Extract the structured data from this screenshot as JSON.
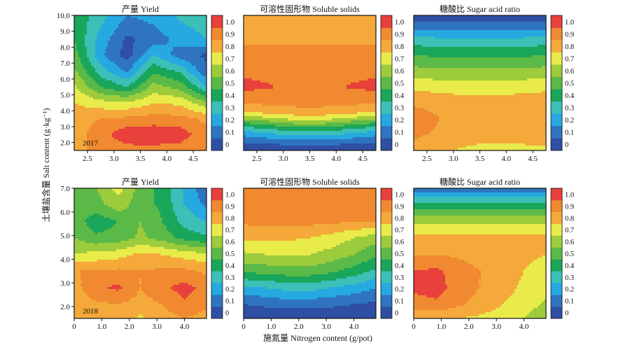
{
  "figure": {
    "ylabel": "土壤盐含量 Salt content (g·kg⁻¹)",
    "xlabel": "施氮量 Nitrogen content (g/pot)"
  },
  "colorbar": {
    "levels": [
      0,
      0.1,
      0.2,
      0.3,
      0.4,
      0.5,
      0.6,
      0.7,
      0.8,
      0.9,
      1.0
    ],
    "tick_labels": [
      "0",
      "0.1",
      "0.2",
      "0.3",
      "0.4",
      "0.5",
      "0.6",
      "0.7",
      "0.8",
      "0.9",
      "1.0"
    ],
    "colors": [
      "#2e4fa3",
      "#2f74c0",
      "#25a9e0",
      "#3bbfb7",
      "#1aa65a",
      "#5bb947",
      "#9ccb3c",
      "#e8eb4a",
      "#f5a93a",
      "#f0892f",
      "#e8403a"
    ]
  },
  "chart_data": [
    {
      "type": "heatmap",
      "row": 0,
      "col": 0,
      "title": "产量 Yield",
      "year_label": "2017",
      "xlim": [
        2.25,
        4.75
      ],
      "ylim": [
        1.5,
        10.0
      ],
      "xticks": [
        2.5,
        3.0,
        3.5,
        4.0,
        4.5
      ],
      "xtick_labels": [
        "2.5",
        "3.0",
        "3.5",
        "4.0",
        "4.5"
      ],
      "yticks": [
        2,
        3,
        4,
        5,
        6,
        7,
        8,
        9,
        10
      ],
      "ytick_labels": [
        "2.0",
        "3.0",
        "4.0",
        "5.0",
        "6.0",
        "7.0",
        "8.0",
        "9.0",
        "10.0"
      ],
      "grid_x": [
        2.25,
        2.75,
        3.25,
        3.75,
        4.25,
        4.75
      ],
      "grid_y": [
        1.5,
        2.5,
        3.5,
        4.5,
        5.5,
        6.5,
        7.5,
        8.5,
        10.0
      ],
      "z": [
        [
          0.88,
          0.92,
          0.95,
          0.96,
          0.94,
          0.9
        ],
        [
          0.86,
          0.95,
          1.08,
          1.08,
          1.06,
          0.92
        ],
        [
          0.86,
          0.9,
          0.92,
          0.94,
          0.93,
          0.88
        ],
        [
          0.8,
          0.74,
          0.72,
          0.79,
          0.78,
          0.62
        ],
        [
          0.72,
          0.5,
          0.4,
          0.64,
          0.56,
          0.3
        ],
        [
          0.62,
          0.35,
          0.18,
          0.48,
          0.38,
          0.12
        ],
        [
          0.55,
          0.22,
          0.05,
          0.3,
          0.15,
          0.08
        ],
        [
          0.5,
          0.26,
          0.08,
          0.14,
          0.24,
          0.3
        ],
        [
          0.48,
          0.34,
          0.2,
          0.24,
          0.32,
          0.36
        ]
      ]
    },
    {
      "type": "heatmap",
      "row": 0,
      "col": 1,
      "title": "可溶性固形物 Soluble solids",
      "xlim": [
        2.25,
        4.75
      ],
      "ylim": [
        1.5,
        10.0
      ],
      "xticks": [
        2.5,
        3.0,
        3.5,
        4.0,
        4.5
      ],
      "xtick_labels": [
        "2.5",
        "3.0",
        "3.5",
        "4.0",
        "4.5"
      ],
      "grid_x": [
        2.25,
        2.75,
        3.25,
        3.75,
        4.25,
        4.75
      ],
      "grid_y": [
        1.5,
        2.0,
        2.5,
        3.0,
        3.5,
        4.0,
        4.5,
        5.5,
        6.5,
        7.5,
        8.5,
        10.0
      ],
      "z": [
        [
          0.02,
          0.02,
          0.02,
          0.02,
          0.02,
          0.02
        ],
        [
          0.1,
          0.12,
          0.14,
          0.14,
          0.12,
          0.1
        ],
        [
          0.22,
          0.28,
          0.32,
          0.32,
          0.28,
          0.22
        ],
        [
          0.4,
          0.46,
          0.52,
          0.52,
          0.46,
          0.4
        ],
        [
          0.62,
          0.68,
          0.74,
          0.74,
          0.68,
          0.62
        ],
        [
          0.84,
          0.86,
          0.88,
          0.88,
          0.86,
          0.84
        ],
        [
          0.9,
          0.92,
          0.92,
          0.92,
          0.92,
          0.9
        ],
        [
          1.03,
          1.01,
          0.94,
          0.94,
          1.01,
          1.03
        ],
        [
          0.98,
          0.96,
          0.92,
          0.92,
          0.96,
          0.98
        ],
        [
          0.92,
          0.92,
          0.92,
          0.92,
          0.92,
          0.92
        ],
        [
          0.89,
          0.89,
          0.89,
          0.89,
          0.89,
          0.89
        ],
        [
          0.84,
          0.83,
          0.83,
          0.84,
          0.85,
          0.85
        ]
      ]
    },
    {
      "type": "heatmap",
      "row": 0,
      "col": 2,
      "title": "糖酸比 Sugar acid ratio",
      "xlim": [
        2.25,
        4.75
      ],
      "ylim": [
        1.5,
        10.0
      ],
      "xticks": [
        2.5,
        3.0,
        3.5,
        4.0,
        4.5
      ],
      "xtick_labels": [
        "2.5",
        "3.0",
        "3.5",
        "4.0",
        "4.5"
      ],
      "grid_x": [
        2.25,
        2.75,
        3.25,
        3.75,
        4.25,
        4.75
      ],
      "grid_y": [
        1.5,
        2.5,
        3.5,
        4.5,
        5.5,
        6.5,
        7.5,
        8.5,
        9.2,
        10.0
      ],
      "z": [
        [
          0.86,
          0.82,
          0.78,
          0.74,
          0.76,
          0.78
        ],
        [
          0.92,
          0.88,
          0.86,
          0.86,
          0.86,
          0.86
        ],
        [
          0.97,
          0.9,
          0.88,
          0.88,
          0.88,
          0.88
        ],
        [
          0.88,
          0.86,
          0.85,
          0.85,
          0.85,
          0.85
        ],
        [
          0.78,
          0.76,
          0.75,
          0.75,
          0.76,
          0.78
        ],
        [
          0.64,
          0.62,
          0.62,
          0.62,
          0.62,
          0.64
        ],
        [
          0.5,
          0.48,
          0.48,
          0.48,
          0.48,
          0.5
        ],
        [
          0.34,
          0.32,
          0.32,
          0.32,
          0.32,
          0.34
        ],
        [
          0.18,
          0.17,
          0.17,
          0.17,
          0.17,
          0.18
        ],
        [
          0.04,
          0.04,
          0.04,
          0.04,
          0.04,
          0.04
        ]
      ]
    },
    {
      "type": "heatmap",
      "row": 1,
      "col": 0,
      "title": "产量 Yield",
      "year_label": "2018",
      "xlim": [
        0,
        4.8
      ],
      "ylim": [
        1.5,
        7.0
      ],
      "xticks": [
        0,
        1,
        2,
        3,
        4
      ],
      "xtick_labels": [
        "0",
        "1.0",
        "2.0",
        "3.0",
        "4.0"
      ],
      "yticks": [
        2,
        3,
        4,
        5,
        6,
        7
      ],
      "ytick_labels": [
        "2.0",
        "3.0",
        "4.0",
        "5.0",
        "6.0",
        "7.0"
      ],
      "grid_x": [
        0,
        0.8,
        1.6,
        2.4,
        3.2,
        4.0,
        4.8
      ],
      "grid_y": [
        1.5,
        2.1,
        2.8,
        3.5,
        4.2,
        4.9,
        5.6,
        6.3,
        7.0
      ],
      "z": [
        [
          0.82,
          0.84,
          0.88,
          0.78,
          0.86,
          0.9,
          0.86
        ],
        [
          0.84,
          0.88,
          0.9,
          0.86,
          0.9,
          0.98,
          0.92
        ],
        [
          0.86,
          0.98,
          1.02,
          0.9,
          0.98,
          1.04,
          0.96
        ],
        [
          0.9,
          0.9,
          0.92,
          0.9,
          0.92,
          0.92,
          0.88
        ],
        [
          0.7,
          0.74,
          0.76,
          0.82,
          0.8,
          0.76,
          0.72
        ],
        [
          0.6,
          0.52,
          0.54,
          0.62,
          0.56,
          0.46,
          0.42
        ],
        [
          0.56,
          0.44,
          0.5,
          0.6,
          0.5,
          0.36,
          0.3
        ],
        [
          0.56,
          0.56,
          0.66,
          0.54,
          0.48,
          0.3,
          0.18
        ],
        [
          0.58,
          0.6,
          0.74,
          0.56,
          0.46,
          0.28,
          0.12
        ]
      ]
    },
    {
      "type": "heatmap",
      "row": 1,
      "col": 1,
      "title": "可溶性固形物 Soluble solids",
      "xlim": [
        0,
        4.8
      ],
      "ylim": [
        1.5,
        7.0
      ],
      "xticks": [
        0,
        1,
        2,
        3,
        4
      ],
      "xtick_labels": [
        "0",
        "1.0",
        "2.0",
        "3.0",
        "4.0"
      ],
      "grid_x": [
        0,
        0.8,
        1.6,
        2.4,
        3.2,
        4.0,
        4.8
      ],
      "grid_y": [
        1.5,
        2.1,
        2.8,
        3.5,
        4.2,
        4.9,
        5.6,
        6.3,
        7.0
      ],
      "z": [
        [
          0.02,
          0.02,
          0.02,
          0.02,
          0.02,
          0.02,
          0.02
        ],
        [
          0.1,
          0.12,
          0.14,
          0.14,
          0.12,
          0.1,
          0.08
        ],
        [
          0.28,
          0.3,
          0.34,
          0.34,
          0.3,
          0.26,
          0.2
        ],
        [
          0.52,
          0.54,
          0.56,
          0.56,
          0.52,
          0.46,
          0.38
        ],
        [
          0.68,
          0.7,
          0.7,
          0.7,
          0.66,
          0.6,
          0.52
        ],
        [
          0.82,
          0.82,
          0.82,
          0.8,
          0.76,
          0.7,
          0.64
        ],
        [
          0.92,
          0.93,
          0.93,
          0.93,
          0.92,
          0.91,
          0.9
        ],
        [
          0.93,
          0.94,
          0.94,
          0.94,
          0.94,
          0.94,
          0.93
        ],
        [
          0.92,
          0.92,
          0.92,
          0.92,
          0.92,
          0.92,
          0.92
        ]
      ]
    },
    {
      "type": "heatmap",
      "row": 1,
      "col": 2,
      "title": "糖酸比 Sugar acid ratio",
      "xlim": [
        0,
        4.8
      ],
      "ylim": [
        1.5,
        7.0
      ],
      "xticks": [
        0,
        1,
        2,
        3,
        4
      ],
      "xtick_labels": [
        "0",
        "1.0",
        "2.0",
        "3.0",
        "4.0"
      ],
      "grid_x": [
        0,
        0.8,
        1.6,
        2.4,
        3.2,
        4.0,
        4.8
      ],
      "grid_y": [
        1.5,
        2.1,
        2.8,
        3.5,
        4.2,
        4.9,
        5.6,
        6.3,
        7.0
      ],
      "z": [
        [
          0.82,
          0.8,
          0.8,
          0.78,
          0.76,
          0.7,
          0.6
        ],
        [
          0.96,
          0.98,
          0.92,
          0.86,
          0.8,
          0.76,
          0.68
        ],
        [
          1.02,
          1.04,
          0.96,
          0.9,
          0.84,
          0.78,
          0.74
        ],
        [
          1.0,
          1.02,
          0.96,
          0.9,
          0.86,
          0.8,
          0.76
        ],
        [
          0.9,
          0.9,
          0.88,
          0.86,
          0.84,
          0.82,
          0.8
        ],
        [
          0.84,
          0.84,
          0.84,
          0.84,
          0.84,
          0.84,
          0.84
        ],
        [
          0.68,
          0.68,
          0.68,
          0.68,
          0.68,
          0.68,
          0.68
        ],
        [
          0.44,
          0.44,
          0.44,
          0.44,
          0.44,
          0.44,
          0.44
        ],
        [
          0.12,
          0.12,
          0.12,
          0.12,
          0.12,
          0.12,
          0.12
        ]
      ]
    }
  ]
}
